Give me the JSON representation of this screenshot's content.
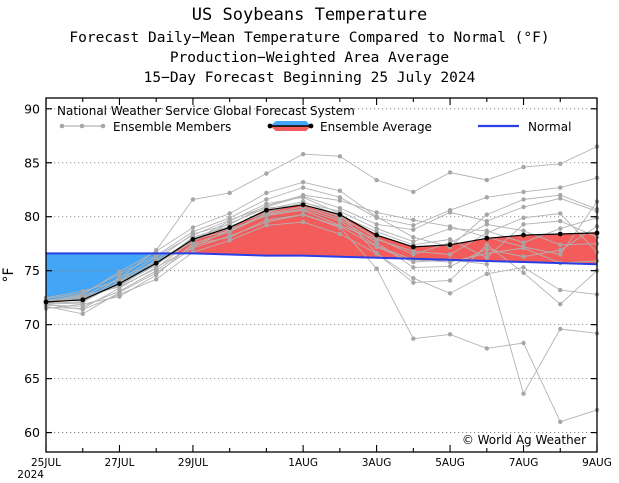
{
  "title": "US Soybeans Temperature",
  "subtitle_lines": [
    "Forecast Daily−Mean Temperature Compared to Normal (°F)",
    "Production−Weighted Area Average",
    "15−Day Forecast Beginning 25 July 2024"
  ],
  "chart_data": {
    "type": "line",
    "title": "US Soybeans Temperature",
    "ylabel": "°F",
    "ylim": [
      58.2,
      91
    ],
    "yticks": [
      60,
      65,
      70,
      75,
      80,
      85,
      90
    ],
    "x_days": [
      0,
      1,
      2,
      3,
      4,
      5,
      6,
      7,
      8,
      9,
      10,
      11,
      12,
      13,
      14,
      15
    ],
    "x_tick_days": [
      0,
      2,
      4,
      7,
      9,
      11,
      13,
      15
    ],
    "x_tick_labels": [
      "25JUL",
      "27JUL",
      "29JUL",
      "1AUG",
      "3AUG",
      "5AUG",
      "7AUG",
      "9AUG"
    ],
    "x_year_label": "2024",
    "legend_header": "National Weather Service Global Forecast System",
    "copyright": "© World Ag Weather",
    "colors": {
      "warm_fill": "#f45b5b",
      "cool_fill": "#42a5f5",
      "normal_line": "#2a3ee8",
      "member_line": "#b3b3b3",
      "member_marker": "#a6a6a6",
      "average_line": "#000000",
      "grid": "#777777"
    },
    "series": [
      {
        "name": "Ensemble Average",
        "values": [
          72.1,
          72.3,
          73.8,
          75.7,
          77.9,
          79.0,
          80.6,
          81.1,
          80.2,
          78.3,
          77.2,
          77.4,
          78.0,
          78.3,
          78.4,
          78.5
        ]
      },
      {
        "name": "Normal",
        "values": [
          76.6,
          76.6,
          76.6,
          76.6,
          76.6,
          76.5,
          76.4,
          76.4,
          76.3,
          76.2,
          76.1,
          76.0,
          75.9,
          75.8,
          75.7,
          75.6
        ]
      }
    ],
    "ensemble_members": [
      [
        72.0,
        72.6,
        74.3,
        76.9,
        81.6,
        82.2,
        84.0,
        85.8,
        85.6,
        83.4,
        82.3,
        84.1,
        83.4,
        84.6,
        84.9,
        86.5
      ],
      [
        71.7,
        71.0,
        73.0,
        74.8,
        77.1,
        78.2,
        79.5,
        80.2,
        79.0,
        75.2,
        68.7,
        69.1,
        67.8,
        68.3,
        61.0,
        62.1
      ],
      [
        72.4,
        72.9,
        74.7,
        76.4,
        78.6,
        79.9,
        81.6,
        82.7,
        81.8,
        79.9,
        79.2,
        80.6,
        81.8,
        82.3,
        82.7,
        83.6
      ],
      [
        71.8,
        71.7,
        73.1,
        75.0,
        77.4,
        78.1,
        79.7,
        80.2,
        79.1,
        77.2,
        75.8,
        76.0,
        75.6,
        63.6,
        69.6,
        69.2
      ],
      [
        72.5,
        73.1,
        74.1,
        76.3,
        78.3,
        79.7,
        80.9,
        81.9,
        80.8,
        79.3,
        78.8,
        80.4,
        79.6,
        80.9,
        81.7,
        80.5
      ],
      [
        71.5,
        71.9,
        72.6,
        74.6,
        77.5,
        78.6,
        80.2,
        80.7,
        79.6,
        77.3,
        76.0,
        75.8,
        76.6,
        77.1,
        75.7,
        75.9
      ],
      [
        72.2,
        72.8,
        74.9,
        76.8,
        79.0,
        80.3,
        82.2,
        83.2,
        82.4,
        80.0,
        78.1,
        77.2,
        80.2,
        81.6,
        82.0,
        80.7
      ],
      [
        71.9,
        71.4,
        72.8,
        74.2,
        76.7,
        77.8,
        79.2,
        79.5,
        78.4,
        76.6,
        74.3,
        72.9,
        74.7,
        75.3,
        73.2,
        72.8
      ],
      [
        72.1,
        72.5,
        73.7,
        75.5,
        78.1,
        79.1,
        80.4,
        81.3,
        80.5,
        78.9,
        77.7,
        78.9,
        78.7,
        77.6,
        78.9,
        79.9
      ],
      [
        72.3,
        72.2,
        74.0,
        75.9,
        77.8,
        79.6,
        81.2,
        81.8,
        80.3,
        76.6,
        73.9,
        74.1,
        77.4,
        74.8,
        71.9,
        75.0
      ],
      [
        71.6,
        71.5,
        73.4,
        75.3,
        77.2,
        78.8,
        80.1,
        80.6,
        79.2,
        77.9,
        76.8,
        76.5,
        78.5,
        79.9,
        80.3,
        76.7
      ],
      [
        72.0,
        72.1,
        73.9,
        76.0,
        78.4,
        79.3,
        81.0,
        82.0,
        81.5,
        80.4,
        79.7,
        79.1,
        78.1,
        77.2,
        76.5,
        81.4
      ],
      [
        71.9,
        72.0,
        74.4,
        75.7,
        78.0,
        78.9,
        80.7,
        81.4,
        80.1,
        78.6,
        77.4,
        77.9,
        76.2,
        79.3,
        79.6,
        78.1
      ],
      [
        72.2,
        72.4,
        73.6,
        75.6,
        77.7,
        79.4,
        80.8,
        81.1,
        80.0,
        78.0,
        76.5,
        77.6,
        79.3,
        78.7,
        77.4,
        77.5
      ],
      [
        72.1,
        72.7,
        73.5,
        75.2,
        77.9,
        78.7,
        80.3,
        80.9,
        79.8,
        77.6,
        75.3,
        75.4,
        77.0,
        76.3,
        76.9,
        79.1
      ]
    ],
    "legend": [
      "Ensemble Members",
      "Ensemble Average",
      "Normal"
    ]
  }
}
